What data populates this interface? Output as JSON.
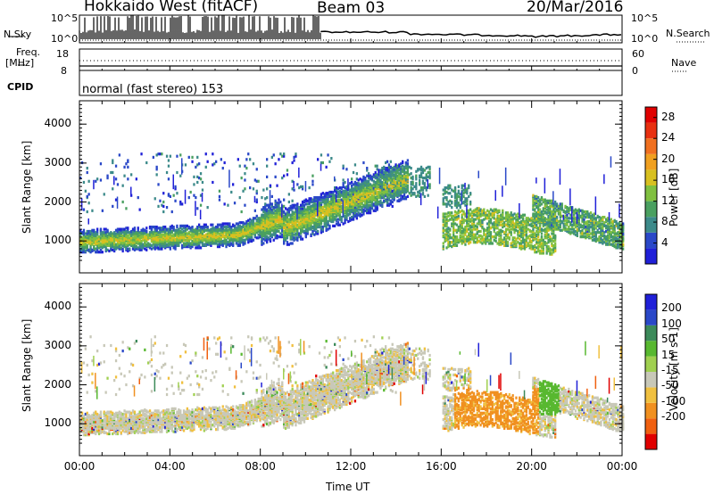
{
  "header": {
    "title": "Hokkaido West (fitACF)",
    "beam": "Beam 03",
    "date": "20/Mar/2016"
  },
  "top_panel": {
    "left_label": "N.Sky",
    "right_label": "N.Search",
    "left_ticks": [
      "10^5",
      "10^0"
    ],
    "right_ticks": [
      "10^5",
      "10^0"
    ]
  },
  "freq_panel": {
    "left_label_1": "Freq.",
    "left_label_2": "[MHz]",
    "right_label": "Nave",
    "left_ticks": [
      "18",
      "8"
    ],
    "right_ticks": [
      "60",
      "0"
    ]
  },
  "cpid": {
    "label": "CPID",
    "mode": "normal (fast stereo) 153"
  },
  "colors": {
    "power_scale": [
      "#2020d8",
      "#2a48c8",
      "#3c8a8a",
      "#4aa060",
      "#80c040",
      "#d8c020",
      "#f0a020",
      "#f07020",
      "#e83010",
      "#e00000"
    ],
    "velocity_scale": [
      "#2020d8",
      "#2a48c8",
      "#3c8a5a",
      "#58b830",
      "#a0d050",
      "#c8c8b8",
      "#f0c040",
      "#f09020",
      "#f06010",
      "#e00000"
    ]
  },
  "chart_data": [
    {
      "type": "heatmap",
      "title": "Power",
      "ylabel": "Slant Range [km]",
      "colorbar_label": "Power [dB]",
      "colorbar_ticks": [
        4,
        8,
        12,
        16,
        20,
        24,
        28
      ],
      "colorbar_range": [
        0,
        30
      ],
      "y_ticks": [
        1000,
        2000,
        3000,
        4000
      ],
      "ylim": [
        180,
        4600
      ],
      "x_ticks": [
        "00:00",
        "04:00",
        "08:00",
        "12:00",
        "16:00",
        "20:00",
        "00:00"
      ],
      "xlim_hours": [
        0,
        24
      ]
    },
    {
      "type": "heatmap",
      "title": "Velocity",
      "ylabel": "Slant Range [km]",
      "colorbar_label": "Velocity [m s-1]",
      "colorbar_ticks": [
        200,
        100,
        50,
        15,
        -15,
        -50,
        -100,
        -200
      ],
      "y_ticks": [
        1000,
        2000,
        3000,
        4000
      ],
      "ylim": [
        180,
        4600
      ],
      "x_ticks": [
        "00:00",
        "04:00",
        "08:00",
        "12:00",
        "16:00",
        "20:00",
        "00:00"
      ],
      "xlabel": "Time UT",
      "xlim_hours": [
        0,
        24
      ]
    }
  ]
}
